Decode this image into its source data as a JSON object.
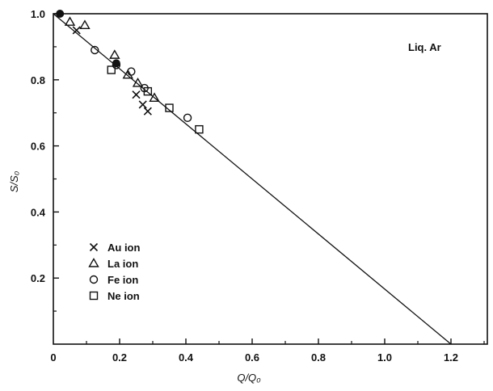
{
  "chart_data": {
    "type": "scatter",
    "title": "",
    "annotation": "Liq. Ar",
    "xlabel": "Q/Q₀",
    "ylabel": "S/S₀",
    "xlim": [
      0,
      1.3
    ],
    "ylim": [
      0,
      1.0
    ],
    "x_ticks": [
      "0",
      "0.2",
      "0.4",
      "0.6",
      "0.8",
      "1.0",
      "1.2"
    ],
    "y_ticks": [
      "0.2",
      "0.4",
      "0.6",
      "0.8",
      "1.0"
    ],
    "grid": false,
    "legend_position": "left-bottom",
    "fit_line": {
      "x": [
        0,
        1.2
      ],
      "y": [
        1.0,
        0.0
      ]
    },
    "series": [
      {
        "name": "Au ion",
        "marker": "cross",
        "points": [
          [
            0.07,
            0.95
          ],
          [
            0.25,
            0.755
          ],
          [
            0.27,
            0.725
          ],
          [
            0.285,
            0.705
          ]
        ]
      },
      {
        "name": "La ion",
        "marker": "triangle",
        "points": [
          [
            0.05,
            0.975
          ],
          [
            0.095,
            0.965
          ],
          [
            0.185,
            0.875
          ],
          [
            0.225,
            0.815
          ],
          [
            0.255,
            0.79
          ],
          [
            0.305,
            0.745
          ]
        ]
      },
      {
        "name": "Fe ion",
        "marker": "circle",
        "points": [
          [
            0.125,
            0.89
          ],
          [
            0.19,
            0.845
          ],
          [
            0.235,
            0.825
          ],
          [
            0.275,
            0.775
          ],
          [
            0.405,
            0.685
          ]
        ]
      },
      {
        "name": "Ne ion",
        "marker": "square",
        "points": [
          [
            0.175,
            0.83
          ],
          [
            0.285,
            0.765
          ],
          [
            0.35,
            0.715
          ],
          [
            0.44,
            0.65
          ]
        ]
      }
    ],
    "filled_points": [
      [
        0.02,
        1.0
      ],
      [
        0.19,
        0.85
      ]
    ]
  }
}
